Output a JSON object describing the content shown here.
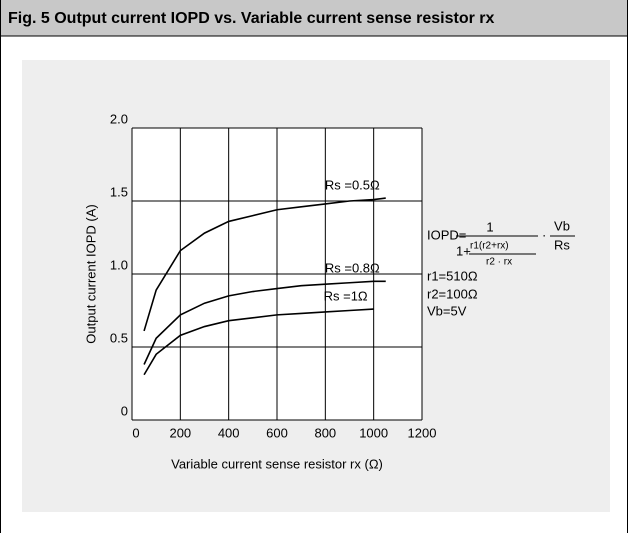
{
  "chart_data": {
    "type": "line",
    "title": "Fig. 5  Output current IOPD vs. Variable current sense resistor rx",
    "xlabel": "Variable current sense resistor rx (Ω)",
    "ylabel": "Output current IOPD (A)",
    "x": [
      50,
      100,
      200,
      300,
      400,
      500,
      600,
      700,
      800,
      900,
      1000,
      1050
    ],
    "series": [
      {
        "name": "Rs =0.5Ω",
        "color": "#000000",
        "values": [
          0.61,
          0.89,
          1.16,
          1.28,
          1.36,
          1.4,
          1.44,
          1.46,
          1.48,
          1.5,
          1.51,
          1.52
        ]
      },
      {
        "name": "Rs =0.8Ω",
        "color": "#000000",
        "values": [
          0.38,
          0.56,
          0.72,
          0.8,
          0.85,
          0.88,
          0.9,
          0.92,
          0.93,
          0.94,
          0.95,
          0.95
        ]
      },
      {
        "name": "Rs =1Ω",
        "color": "#000000",
        "values": [
          0.31,
          0.45,
          0.58,
          0.64,
          0.68,
          0.7,
          0.72,
          0.73,
          0.74,
          0.75,
          0.76,
          null
        ]
      }
    ],
    "xlim": [
      0,
      1200
    ],
    "xticks": [
      0,
      200,
      400,
      600,
      800,
      1000,
      1200
    ],
    "ylim": [
      0,
      2
    ],
    "yticks": [
      0,
      0.5,
      {
        "value": 1,
        "label": "1.0"
      },
      1.5,
      {
        "value": 2,
        "label": "2.0"
      }
    ],
    "grid": true,
    "annotations": [
      "IOPD=",
      "1",
      "1+",
      "r1(r2+rx)",
      "r2 · rx",
      "·",
      "Vb",
      "Rs",
      "r1=510Ω",
      "r2=100Ω",
      "Vb=5V"
    ]
  }
}
